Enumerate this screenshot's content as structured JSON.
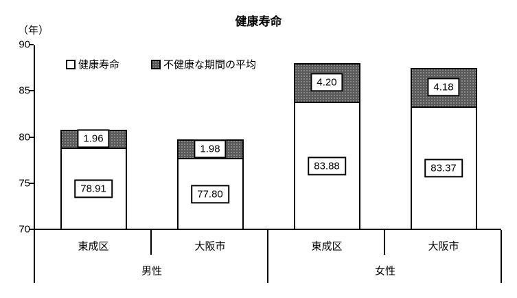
{
  "chart_data": {
    "type": "bar",
    "stacked": true,
    "title": "健康寿命",
    "ylabel_unit": "（年）",
    "ylim": [
      70,
      90
    ],
    "yticks": [
      70,
      75,
      80,
      85,
      90
    ],
    "grid": false,
    "legend": {
      "position": "top-inside",
      "items": [
        {
          "label": "健康寿命",
          "style": "white"
        },
        {
          "label": "不健康な期間の平均",
          "style": "dark-dotted"
        }
      ]
    },
    "colors": {
      "healthy_fill": "#ffffff",
      "unhealthy_fill": "#595959",
      "border": "#000000"
    },
    "groups": [
      {
        "label": "男性",
        "bars": [
          {
            "category": "東成区",
            "healthy": 78.91,
            "unhealthy": 1.96,
            "healthy_label": "78.91",
            "unhealthy_label": "1.96"
          },
          {
            "category": "大阪市",
            "healthy": 77.8,
            "unhealthy": 1.98,
            "healthy_label": "77.80",
            "unhealthy_label": "1.98"
          }
        ]
      },
      {
        "label": "女性",
        "bars": [
          {
            "category": "東成区",
            "healthy": 83.88,
            "unhealthy": 4.2,
            "healthy_label": "83.88",
            "unhealthy_label": "4.20"
          },
          {
            "category": "大阪市",
            "healthy": 83.37,
            "unhealthy": 4.18,
            "healthy_label": "83.37",
            "unhealthy_label": "4.18"
          }
        ]
      }
    ]
  }
}
